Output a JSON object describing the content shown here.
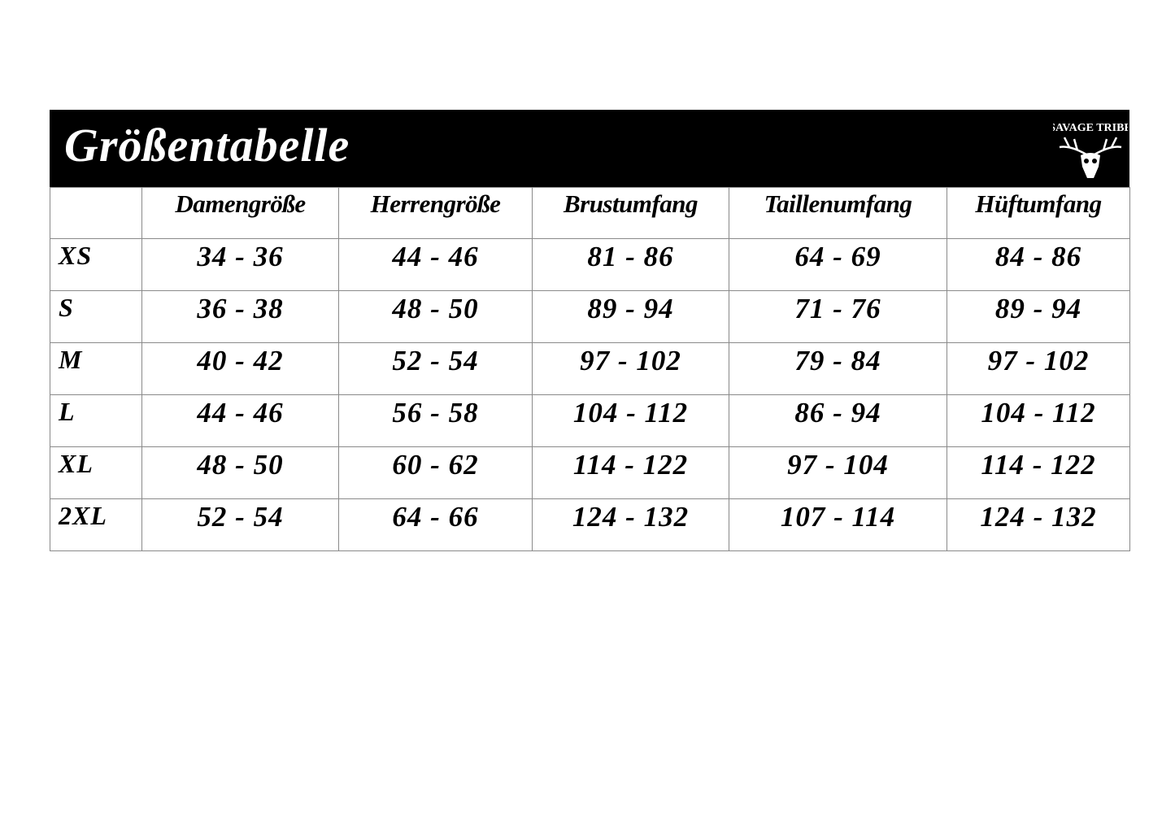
{
  "title": "Größentabelle",
  "logo": {
    "text": "SAVAGE TRIBE",
    "icon": "deer-skull-logo"
  },
  "columns": [
    "",
    "Damengröße",
    "Herrengröße",
    "Brustumfang",
    "Taillenumfang",
    "Hüftumfang"
  ],
  "rows": [
    [
      "XS",
      "34 - 36",
      "44 - 46",
      "81 - 86",
      "64 - 69",
      "84 - 86"
    ],
    [
      "S",
      "36 - 38",
      "48 - 50",
      "89 - 94",
      "71 - 76",
      "89 - 94"
    ],
    [
      "M",
      "40 - 42",
      "52 - 54",
      "97 - 102",
      "79 - 84",
      "97 - 102"
    ],
    [
      "L",
      "44 - 46",
      "56 - 58",
      "104 - 112",
      "86 - 94",
      "104 - 112"
    ],
    [
      "XL",
      "48 - 50",
      "60 - 62",
      "114 - 122",
      "97 - 104",
      "114 - 122"
    ],
    [
      "2XL",
      "52 - 54",
      "64 - 66",
      "124 - 132",
      "107 - 114",
      "124 - 132"
    ]
  ]
}
